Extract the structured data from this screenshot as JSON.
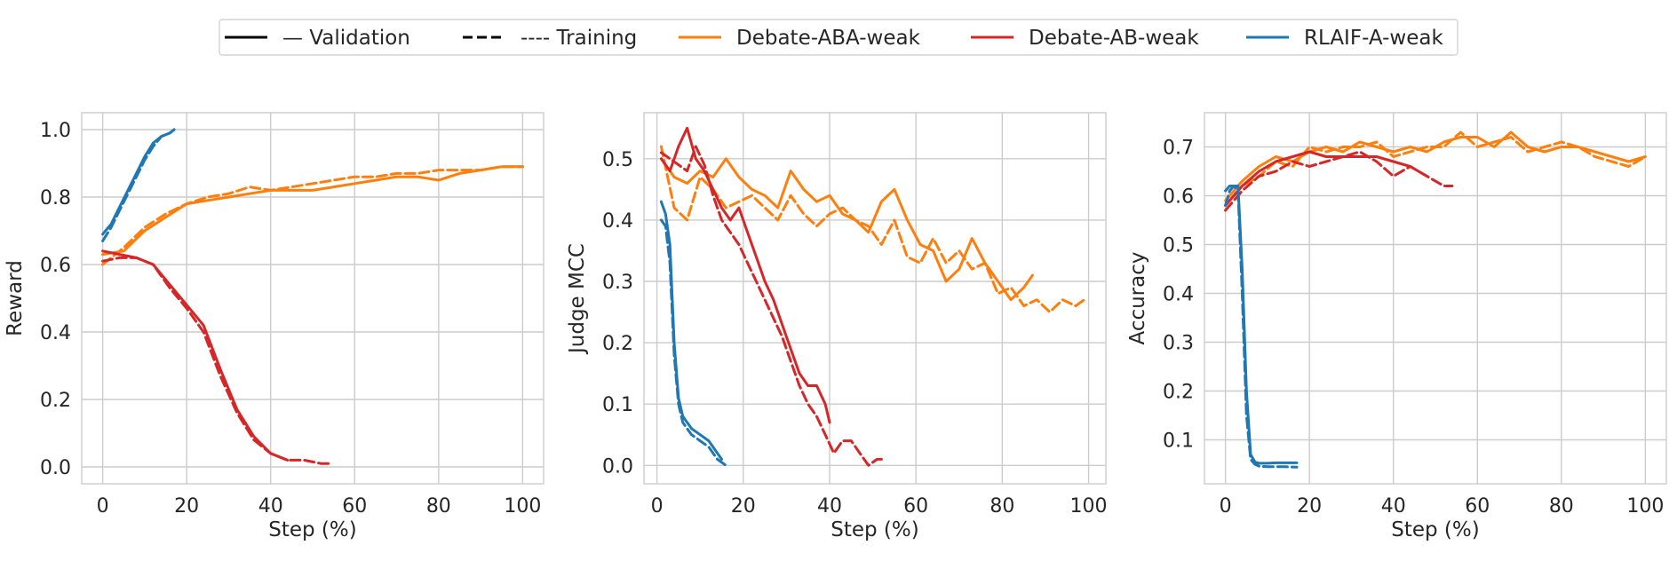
{
  "legend": {
    "entries": [
      {
        "label": "— Validation",
        "style": "solid",
        "color": "#000000"
      },
      {
        "label": "---- Training",
        "style": "dashed",
        "color": "#000000"
      },
      {
        "label": "Debate-ABA-weak",
        "style": "solid",
        "color": "#ff7f0e"
      },
      {
        "label": "Debate-AB-weak",
        "style": "solid",
        "color": "#d62728"
      },
      {
        "label": "RLAIF-A-weak",
        "style": "solid",
        "color": "#1f77b4"
      }
    ]
  },
  "colors": {
    "Debate-ABA-weak": "#ff7f0e",
    "Debate-AB-weak": "#d62728",
    "RLAIF-A-weak": "#1f77b4",
    "grid": "#cccccc"
  },
  "chart_data": [
    {
      "type": "line",
      "xlabel": "Step (%)",
      "ylabel": "Reward",
      "xlim": [
        -5,
        105
      ],
      "ylim": [
        -0.05,
        1.05
      ],
      "xticks": [
        0,
        20,
        40,
        60,
        80,
        100
      ],
      "yticks": [
        0.0,
        0.2,
        0.4,
        0.6,
        0.8,
        1.0
      ],
      "ytick_decimals": 1,
      "grid": true,
      "series": [
        {
          "name": "Debate-ABA-weak",
          "style": "solid",
          "x": [
            0,
            5,
            10,
            15,
            20,
            25,
            30,
            35,
            40,
            45,
            50,
            55,
            60,
            65,
            70,
            75,
            80,
            85,
            90,
            95,
            100
          ],
          "y": [
            0.63,
            0.64,
            0.7,
            0.74,
            0.78,
            0.79,
            0.8,
            0.81,
            0.82,
            0.82,
            0.82,
            0.83,
            0.84,
            0.85,
            0.86,
            0.86,
            0.85,
            0.87,
            0.88,
            0.89,
            0.89
          ]
        },
        {
          "name": "Debate-ABA-weak",
          "style": "dashed",
          "x": [
            0,
            5,
            10,
            15,
            20,
            25,
            30,
            35,
            40,
            45,
            50,
            55,
            60,
            65,
            70,
            75,
            80,
            85,
            90,
            95,
            100
          ],
          "y": [
            0.6,
            0.65,
            0.71,
            0.75,
            0.78,
            0.8,
            0.81,
            0.83,
            0.82,
            0.83,
            0.84,
            0.85,
            0.86,
            0.86,
            0.87,
            0.87,
            0.88,
            0.88,
            0.88,
            0.89,
            0.89
          ]
        },
        {
          "name": "Debate-AB-weak",
          "style": "solid",
          "x": [
            0,
            4,
            8,
            12,
            16,
            20,
            24,
            28,
            32,
            36,
            40,
            44
          ],
          "y": [
            0.64,
            0.63,
            0.62,
            0.6,
            0.54,
            0.48,
            0.42,
            0.29,
            0.17,
            0.09,
            0.04,
            0.02
          ]
        },
        {
          "name": "Debate-AB-weak",
          "style": "dashed",
          "x": [
            0,
            4,
            8,
            12,
            16,
            20,
            24,
            28,
            32,
            36,
            40,
            44,
            48,
            52,
            54
          ],
          "y": [
            0.61,
            0.62,
            0.62,
            0.6,
            0.53,
            0.47,
            0.4,
            0.27,
            0.16,
            0.08,
            0.04,
            0.02,
            0.02,
            0.01,
            0.01
          ]
        },
        {
          "name": "RLAIF-A-weak",
          "style": "solid",
          "x": [
            0,
            2,
            4,
            6,
            8,
            10,
            12,
            14,
            16,
            17
          ],
          "y": [
            0.69,
            0.72,
            0.77,
            0.82,
            0.87,
            0.92,
            0.96,
            0.98,
            0.99,
            1.0
          ]
        },
        {
          "name": "RLAIF-A-weak",
          "style": "dashed",
          "x": [
            0,
            2,
            4,
            6,
            8,
            10,
            12,
            14,
            16,
            17
          ],
          "y": [
            0.67,
            0.71,
            0.76,
            0.81,
            0.86,
            0.91,
            0.95,
            0.98,
            0.99,
            1.0
          ]
        }
      ]
    },
    {
      "type": "line",
      "xlabel": "Step (%)",
      "ylabel": "Judge MCC",
      "xlim": [
        -3,
        104
      ],
      "ylim": [
        -0.03,
        0.575
      ],
      "xticks": [
        0,
        20,
        40,
        60,
        80,
        100
      ],
      "yticks": [
        0.0,
        0.1,
        0.2,
        0.3,
        0.4,
        0.5
      ],
      "ytick_decimals": 1,
      "grid": true,
      "series": [
        {
          "name": "Debate-ABA-weak",
          "style": "solid",
          "x": [
            1,
            4,
            7,
            10,
            13,
            16,
            19,
            22,
            25,
            28,
            31,
            34,
            37,
            40,
            43,
            46,
            49,
            52,
            55,
            58,
            61,
            64,
            67,
            70,
            73,
            76,
            79,
            82,
            85,
            87
          ],
          "y": [
            0.5,
            0.47,
            0.46,
            0.48,
            0.47,
            0.5,
            0.47,
            0.45,
            0.44,
            0.42,
            0.48,
            0.45,
            0.43,
            0.44,
            0.41,
            0.4,
            0.38,
            0.43,
            0.45,
            0.4,
            0.36,
            0.35,
            0.3,
            0.32,
            0.37,
            0.33,
            0.3,
            0.27,
            0.29,
            0.31
          ]
        },
        {
          "name": "Debate-ABA-weak",
          "style": "dashed",
          "x": [
            1,
            4,
            7,
            10,
            13,
            16,
            19,
            22,
            25,
            28,
            31,
            34,
            37,
            40,
            43,
            46,
            49,
            52,
            55,
            58,
            61,
            64,
            67,
            70,
            73,
            76,
            79,
            82,
            85,
            88,
            91,
            94,
            97,
            99
          ],
          "y": [
            0.52,
            0.42,
            0.4,
            0.47,
            0.45,
            0.42,
            0.43,
            0.44,
            0.42,
            0.4,
            0.44,
            0.41,
            0.39,
            0.41,
            0.42,
            0.4,
            0.39,
            0.36,
            0.4,
            0.34,
            0.33,
            0.37,
            0.33,
            0.35,
            0.32,
            0.33,
            0.28,
            0.29,
            0.26,
            0.27,
            0.25,
            0.27,
            0.26,
            0.27
          ]
        },
        {
          "name": "Debate-AB-weak",
          "style": "solid",
          "x": [
            1,
            3,
            5,
            7,
            9,
            11,
            13,
            15,
            17,
            19,
            21,
            23,
            25,
            27,
            29,
            31,
            33,
            35,
            37,
            39,
            40
          ],
          "y": [
            0.5,
            0.48,
            0.52,
            0.55,
            0.5,
            0.48,
            0.45,
            0.42,
            0.4,
            0.42,
            0.38,
            0.34,
            0.3,
            0.27,
            0.23,
            0.19,
            0.15,
            0.13,
            0.13,
            0.1,
            0.07
          ]
        },
        {
          "name": "Debate-AB-weak",
          "style": "dashed",
          "x": [
            1,
            3,
            5,
            7,
            9,
            11,
            13,
            15,
            17,
            19,
            21,
            23,
            25,
            27,
            29,
            31,
            33,
            35,
            37,
            39,
            41,
            43,
            45,
            47,
            49,
            51,
            53
          ],
          "y": [
            0.51,
            0.5,
            0.49,
            0.48,
            0.52,
            0.49,
            0.44,
            0.4,
            0.38,
            0.36,
            0.33,
            0.3,
            0.27,
            0.24,
            0.21,
            0.17,
            0.13,
            0.1,
            0.08,
            0.05,
            0.02,
            0.04,
            0.04,
            0.02,
            0.0,
            0.01,
            0.01
          ]
        },
        {
          "name": "RLAIF-A-weak",
          "style": "solid",
          "x": [
            1,
            2,
            3,
            4,
            5,
            6,
            7,
            8,
            10,
            12,
            14,
            15
          ],
          "y": [
            0.43,
            0.41,
            0.36,
            0.2,
            0.11,
            0.08,
            0.07,
            0.06,
            0.05,
            0.04,
            0.02,
            0.01
          ]
        },
        {
          "name": "RLAIF-A-weak",
          "style": "dashed",
          "x": [
            1,
            2,
            3,
            4,
            5,
            6,
            7,
            8,
            10,
            12,
            14,
            16
          ],
          "y": [
            0.4,
            0.39,
            0.33,
            0.18,
            0.1,
            0.07,
            0.06,
            0.05,
            0.04,
            0.03,
            0.01,
            0.0
          ]
        }
      ]
    },
    {
      "type": "line",
      "xlabel": "Step (%)",
      "ylabel": "Accuracy",
      "xlim": [
        -5,
        105
      ],
      "ylim": [
        0.01,
        0.77
      ],
      "xticks": [
        0,
        20,
        40,
        60,
        80,
        100
      ],
      "yticks": [
        0.1,
        0.2,
        0.3,
        0.4,
        0.5,
        0.6,
        0.7
      ],
      "ytick_decimals": 1,
      "grid": true,
      "series": [
        {
          "name": "Debate-ABA-weak",
          "style": "solid",
          "x": [
            0,
            4,
            8,
            12,
            16,
            20,
            24,
            28,
            32,
            36,
            40,
            44,
            48,
            52,
            56,
            60,
            64,
            68,
            72,
            76,
            80,
            84,
            88,
            92,
            96,
            100
          ],
          "y": [
            0.59,
            0.63,
            0.66,
            0.68,
            0.67,
            0.69,
            0.7,
            0.69,
            0.71,
            0.7,
            0.69,
            0.7,
            0.69,
            0.71,
            0.72,
            0.72,
            0.7,
            0.73,
            0.7,
            0.69,
            0.7,
            0.7,
            0.69,
            0.68,
            0.67,
            0.68
          ]
        },
        {
          "name": "Debate-ABA-weak",
          "style": "dashed",
          "x": [
            0,
            4,
            8,
            12,
            16,
            20,
            24,
            28,
            32,
            36,
            40,
            44,
            48,
            52,
            56,
            60,
            64,
            68,
            72,
            76,
            80,
            84,
            88,
            92,
            96,
            100
          ],
          "y": [
            0.58,
            0.62,
            0.64,
            0.67,
            0.66,
            0.7,
            0.69,
            0.7,
            0.7,
            0.71,
            0.68,
            0.69,
            0.7,
            0.7,
            0.73,
            0.7,
            0.71,
            0.72,
            0.69,
            0.7,
            0.71,
            0.7,
            0.68,
            0.67,
            0.66,
            0.68
          ]
        },
        {
          "name": "Debate-AB-weak",
          "style": "solid",
          "x": [
            0,
            4,
            8,
            12,
            16,
            20,
            24,
            28,
            32,
            36,
            40,
            44,
            48
          ],
          "y": [
            0.58,
            0.62,
            0.65,
            0.67,
            0.68,
            0.69,
            0.68,
            0.68,
            0.68,
            0.68,
            0.67,
            0.66,
            0.64
          ]
        },
        {
          "name": "Debate-AB-weak",
          "style": "dashed",
          "x": [
            0,
            4,
            8,
            12,
            16,
            20,
            24,
            28,
            32,
            36,
            40,
            44,
            48,
            52,
            54
          ],
          "y": [
            0.57,
            0.61,
            0.64,
            0.65,
            0.67,
            0.66,
            0.67,
            0.68,
            0.69,
            0.67,
            0.64,
            0.66,
            0.64,
            0.62,
            0.62
          ]
        },
        {
          "name": "RLAIF-A-weak",
          "style": "solid",
          "x": [
            0,
            1,
            2,
            3,
            4,
            5,
            6,
            7,
            8,
            10,
            12,
            14,
            17
          ],
          "y": [
            0.61,
            0.62,
            0.62,
            0.62,
            0.45,
            0.2,
            0.07,
            0.055,
            0.052,
            0.052,
            0.053,
            0.053,
            0.053
          ]
        },
        {
          "name": "RLAIF-A-weak",
          "style": "dashed",
          "x": [
            0,
            1,
            2,
            3,
            4,
            5,
            6,
            7,
            8,
            10,
            12,
            14,
            17
          ],
          "y": [
            0.58,
            0.61,
            0.62,
            0.61,
            0.4,
            0.15,
            0.06,
            0.05,
            0.046,
            0.045,
            0.045,
            0.045,
            0.044
          ]
        }
      ]
    }
  ]
}
